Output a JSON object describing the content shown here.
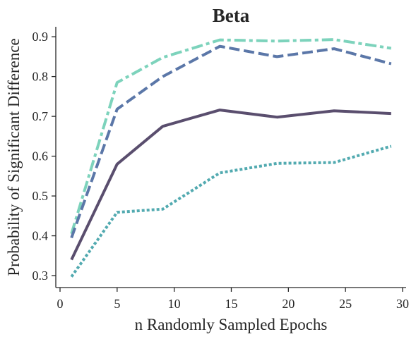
{
  "chart_data": {
    "type": "line",
    "title": "Beta",
    "xlabel": "n Randomly Sampled Epochs",
    "ylabel": "Probability of Significant Difference",
    "xlim": [
      0,
      30
    ],
    "ylim": [
      0.27,
      0.925
    ],
    "xticks": [
      0,
      5,
      10,
      15,
      20,
      25,
      30
    ],
    "yticks": [
      0.3,
      0.4,
      0.5,
      0.6,
      0.7,
      0.8,
      0.9
    ],
    "xtick_labels": [
      "0",
      "5",
      "10",
      "15",
      "20",
      "25",
      "30"
    ],
    "ytick_labels": [
      "0.3",
      "0.4",
      "0.5",
      "0.6",
      "0.7",
      "0.8",
      "0.9"
    ],
    "grid": false,
    "legend": "none",
    "x": [
      1,
      5,
      9,
      14,
      19,
      24,
      29
    ],
    "series": [
      {
        "values": [
          0.405,
          0.785,
          0.848,
          0.892,
          0.889,
          0.893,
          0.871
        ],
        "color": "#7dd3bc",
        "dash": "16,5,5,5"
      },
      {
        "values": [
          0.395,
          0.718,
          0.8,
          0.876,
          0.85,
          0.87,
          0.832
        ],
        "color": "#5b77a8",
        "dash": "15,6"
      },
      {
        "values": [
          0.34,
          0.58,
          0.675,
          0.716,
          0.698,
          0.714,
          0.707
        ],
        "color": "#5a4e6e",
        "dash": ""
      },
      {
        "values": [
          0.297,
          0.459,
          0.467,
          0.558,
          0.582,
          0.584,
          0.625
        ],
        "color": "#52aab0",
        "dash": "4,3"
      }
    ]
  }
}
